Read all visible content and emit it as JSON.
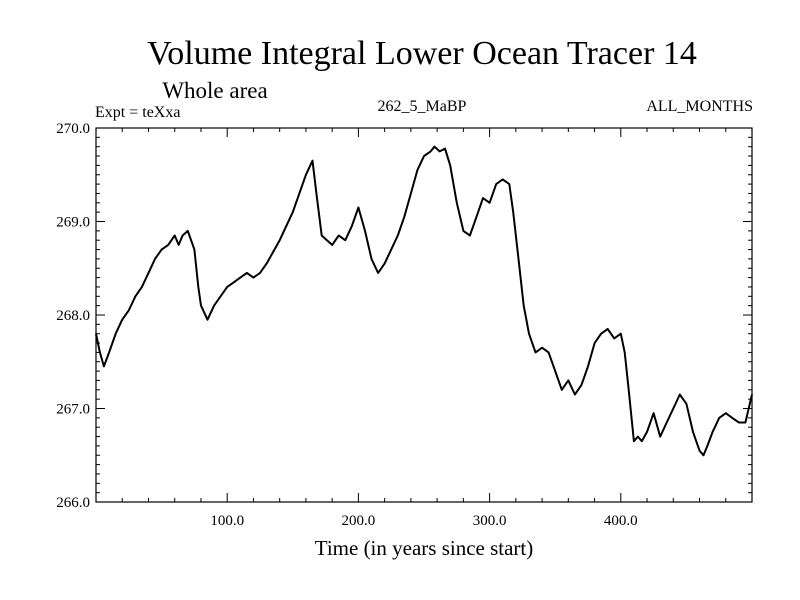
{
  "chart_data": {
    "type": "line",
    "title": "Volume Integral Lower Ocean Tracer 14",
    "subtitle": "Whole area",
    "left_label": "Expt = teXxa",
    "center_label": "262_5_MaBP",
    "right_label": "ALL_MONTHS",
    "xlabel": "Time (in years since start)",
    "ylabel": "",
    "xlim": [
      0,
      500
    ],
    "ylim": [
      266.0,
      270.0
    ],
    "x_ticks": [
      100,
      200,
      300,
      400
    ],
    "x_tick_labels": [
      "100.0",
      "200.0",
      "300.0",
      "400.0"
    ],
    "y_ticks": [
      266.0,
      267.0,
      268.0,
      269.0,
      270.0
    ],
    "y_tick_labels": [
      "266.0",
      "267.0",
      "268.0",
      "269.0",
      "270.0"
    ],
    "line_color": "#000000",
    "series": [
      {
        "name": "Tracer 14",
        "x": [
          0,
          3,
          6,
          10,
          15,
          20,
          25,
          30,
          35,
          40,
          45,
          50,
          55,
          60,
          63,
          66,
          70,
          75,
          78,
          80,
          85,
          90,
          95,
          100,
          105,
          110,
          115,
          120,
          125,
          130,
          140,
          150,
          160,
          165,
          168,
          172,
          176,
          180,
          185,
          190,
          195,
          200,
          205,
          210,
          215,
          220,
          225,
          230,
          235,
          240,
          245,
          250,
          255,
          258,
          262,
          266,
          270,
          275,
          280,
          285,
          290,
          295,
          300,
          305,
          310,
          315,
          318,
          322,
          326,
          330,
          335,
          340,
          345,
          350,
          355,
          360,
          365,
          370,
          375,
          380,
          385,
          390,
          395,
          400,
          403,
          406,
          410,
          413,
          416,
          420,
          425,
          430,
          435,
          440,
          445,
          450,
          455,
          460,
          463,
          466,
          470,
          475,
          480,
          485,
          490,
          495,
          500
        ],
        "values": [
          267.8,
          267.6,
          267.45,
          267.6,
          267.8,
          267.95,
          268.05,
          268.2,
          268.3,
          268.45,
          268.6,
          268.7,
          268.75,
          268.85,
          268.75,
          268.85,
          268.9,
          268.7,
          268.3,
          268.1,
          267.95,
          268.1,
          268.2,
          268.3,
          268.35,
          268.4,
          268.45,
          268.4,
          268.45,
          268.55,
          268.8,
          269.1,
          269.5,
          269.65,
          269.3,
          268.85,
          268.8,
          268.75,
          268.85,
          268.8,
          268.95,
          269.15,
          268.9,
          268.6,
          268.45,
          268.55,
          268.7,
          268.85,
          269.05,
          269.3,
          269.55,
          269.7,
          269.75,
          269.8,
          269.75,
          269.78,
          269.6,
          269.2,
          268.9,
          268.85,
          269.05,
          269.25,
          269.2,
          269.4,
          269.45,
          269.4,
          269.1,
          268.6,
          268.1,
          267.8,
          267.6,
          267.65,
          267.6,
          267.4,
          267.2,
          267.3,
          267.15,
          267.25,
          267.45,
          267.7,
          267.8,
          267.85,
          267.75,
          267.8,
          267.6,
          267.2,
          266.65,
          266.7,
          266.65,
          266.75,
          266.95,
          266.7,
          266.85,
          267.0,
          267.15,
          267.05,
          266.75,
          266.55,
          266.5,
          266.6,
          266.75,
          266.9,
          266.95,
          266.9,
          266.85,
          266.85,
          267.15
        ]
      }
    ]
  }
}
